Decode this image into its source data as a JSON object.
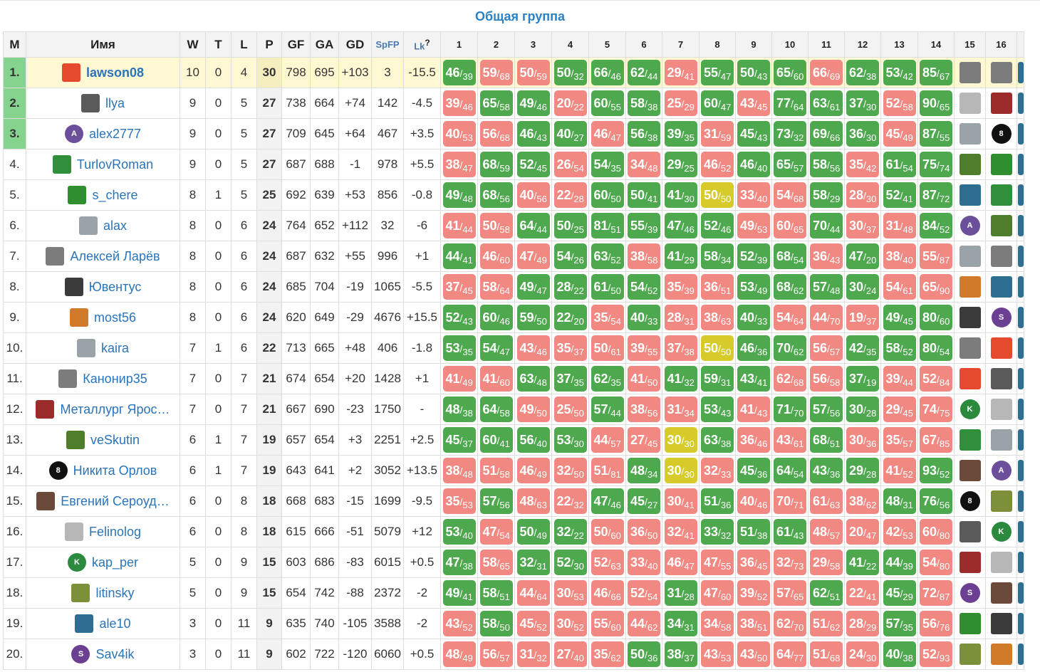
{
  "title": "Общая группа",
  "headers": {
    "rank": "М",
    "name": "Имя",
    "w": "W",
    "t": "T",
    "l": "L",
    "p": "P",
    "gf": "GF",
    "ga": "GA",
    "gd": "GD",
    "spfp": "SpFP",
    "lk": "Lk",
    "lk_help": "?"
  },
  "game_headers": [
    "1",
    "2",
    "3",
    "4",
    "5",
    "6",
    "7",
    "8",
    "9",
    "10",
    "11",
    "12",
    "13",
    "14",
    "15",
    "16"
  ],
  "colors": {
    "win": "#4ea84e",
    "loss": "#f28882",
    "draw": "#d6cb2b",
    "top": "#86d38e",
    "leader_row": "#fff8d2",
    "link": "#2a74b9",
    "title": "#2a82c6"
  },
  "rows": [
    {
      "rank": "1.",
      "name": "lawson08",
      "icon": "pentagon-red",
      "w": "10",
      "t": "0",
      "l": "4",
      "p": "30",
      "gf": "798",
      "ga": "695",
      "gd": "+103",
      "spfp": "3",
      "lk": "-15.5",
      "games": [
        "46/39",
        "59/68",
        "50/59",
        "50/32",
        "66/46",
        "62/44",
        "29/41",
        "55/47",
        "50/43",
        "65/60",
        "66/69",
        "62/38",
        "53/42",
        "85/67"
      ],
      "icons": [
        "photo-gray",
        "photo-gray"
      ]
    },
    {
      "rank": "2.",
      "name": "llya",
      "icon": "photo-lincoln",
      "w": "9",
      "t": "0",
      "l": "5",
      "p": "27",
      "gf": "738",
      "ga": "664",
      "gd": "+74",
      "spfp": "142",
      "lk": "-4.5",
      "games": [
        "39/46",
        "65/58",
        "49/46",
        "20/22",
        "60/55",
        "58/38",
        "25/29",
        "60/47",
        "43/45",
        "77/64",
        "63/61",
        "37/30",
        "52/58",
        "90/65"
      ],
      "corners": {
        "2": "0",
        "4": "0",
        "7": "2",
        "8": "0",
        "10": "1",
        "13": "0"
      },
      "icons": [
        "photo-sketch",
        "photo-soccer"
      ]
    },
    {
      "rank": "3.",
      "name": "alex2777",
      "icon": "letter-A",
      "w": "9",
      "t": "0",
      "l": "5",
      "p": "27",
      "gf": "709",
      "ga": "645",
      "gd": "+64",
      "spfp": "467",
      "lk": "+3.5",
      "games": [
        "40/53",
        "56/68",
        "46/43",
        "40/27",
        "46/47",
        "56/38",
        "39/35",
        "31/59",
        "45/43",
        "73/32",
        "69/66",
        "36/30",
        "45/49",
        "87/55"
      ],
      "icons": [
        "photo-cat",
        "eight-ball"
      ]
    },
    {
      "rank": "4.",
      "name": "TurlovRoman",
      "icon": "flag-it",
      "w": "9",
      "t": "0",
      "l": "5",
      "p": "27",
      "gf": "687",
      "ga": "688",
      "gd": "-1",
      "spfp": "978",
      "lk": "+5.5",
      "games": [
        "38/47",
        "68/59",
        "52/45",
        "26/54",
        "54/35",
        "34/48",
        "29/25",
        "46/52",
        "46/40",
        "65/57",
        "58/56",
        "35/42",
        "61/54",
        "75/74"
      ],
      "corners": {
        "2": "15",
        "3": "15",
        "8": "2",
        "10": "15",
        "12": "15"
      },
      "icons": [
        "photo-green",
        "hat-green"
      ]
    },
    {
      "rank": "5.",
      "name": "s_chere",
      "icon": "hat-green",
      "w": "8",
      "t": "1",
      "l": "5",
      "p": "25",
      "gf": "692",
      "ga": "639",
      "gd": "+53",
      "spfp": "856",
      "lk": "-0.8",
      "games": [
        "49/48",
        "68/56",
        "40/56",
        "22/28",
        "60/50",
        "50/41",
        "41/30",
        "50/50",
        "33/40",
        "54/68",
        "58/29",
        "28/30",
        "52/41",
        "87/72"
      ],
      "icons": [
        "photo-blue",
        "flag-it"
      ]
    },
    {
      "rank": "6.",
      "name": "alax",
      "icon": "photo-cat",
      "w": "8",
      "t": "0",
      "l": "6",
      "p": "24",
      "gf": "764",
      "ga": "652",
      "gd": "+112",
      "spfp": "32",
      "lk": "-6",
      "games": [
        "41/44",
        "50/58",
        "64/44",
        "50/25",
        "81/51",
        "55/39",
        "47/46",
        "52/46",
        "49/53",
        "60/65",
        "70/44",
        "30/37",
        "31/48",
        "84/52"
      ],
      "corners": {
        "3": "0",
        "4": "1"
      },
      "icons": [
        "letter-A",
        "photo-green"
      ]
    },
    {
      "rank": "7.",
      "name": "Алексей Ларёв",
      "icon": "photo-gray",
      "w": "8",
      "t": "0",
      "l": "6",
      "p": "24",
      "gf": "687",
      "ga": "632",
      "gd": "+55",
      "spfp": "996",
      "lk": "+1",
      "games": [
        "44/41",
        "46/60",
        "47/49",
        "54/26",
        "63/52",
        "38/58",
        "41/29",
        "58/34",
        "52/39",
        "68/54",
        "36/43",
        "47/20",
        "38/40",
        "55/87"
      ],
      "icons": [
        "photo-cat",
        "photo-gray"
      ]
    },
    {
      "rank": "8.",
      "name": "Ювентус",
      "icon": "juve",
      "w": "8",
      "t": "0",
      "l": "6",
      "p": "24",
      "gf": "685",
      "ga": "704",
      "gd": "-19",
      "spfp": "1065",
      "lk": "-5.5",
      "games": [
        "37/45",
        "58/64",
        "49/47",
        "28/22",
        "61/50",
        "54/52",
        "35/39",
        "36/51",
        "53/49",
        "68/62",
        "57/48",
        "30/24",
        "54/61",
        "65/90"
      ],
      "icons": [
        "mushroom",
        "photo-blue"
      ]
    },
    {
      "rank": "9.",
      "name": "most56",
      "icon": "mushroom",
      "w": "8",
      "t": "0",
      "l": "6",
      "p": "24",
      "gf": "620",
      "ga": "649",
      "gd": "-29",
      "spfp": "4676",
      "lk": "+15.5",
      "games": [
        "52/43",
        "60/46",
        "59/50",
        "22/20",
        "35/54",
        "40/33",
        "28/31",
        "38/63",
        "40/33",
        "54/64",
        "44/70",
        "19/37",
        "49/45",
        "80/60"
      ],
      "corners": {
        "5": "0",
        "8": "0",
        "12": "0"
      },
      "icons": [
        "juve",
        "letter-S"
      ]
    },
    {
      "rank": "10.",
      "name": "kaira",
      "icon": "photo-cat",
      "w": "7",
      "t": "1",
      "l": "6",
      "p": "22",
      "gf": "713",
      "ga": "665",
      "gd": "+48",
      "spfp": "406",
      "lk": "-1.8",
      "games": [
        "53/35",
        "54/47",
        "43/46",
        "35/37",
        "50/61",
        "39/55",
        "37/38",
        "50/50",
        "46/36",
        "70/62",
        "56/57",
        "42/35",
        "58/52",
        "80/54"
      ],
      "icons": [
        "photo-gray",
        "pentagon-red"
      ]
    },
    {
      "rank": "11.",
      "name": "Канонир35",
      "icon": "photo-gray",
      "w": "7",
      "t": "0",
      "l": "7",
      "p": "21",
      "gf": "674",
      "ga": "654",
      "gd": "+20",
      "spfp": "1428",
      "lk": "+1",
      "games": [
        "41/49",
        "41/60",
        "63/48",
        "37/35",
        "62/35",
        "41/50",
        "41/32",
        "59/31",
        "43/41",
        "62/68",
        "56/58",
        "37/19",
        "39/44",
        "52/84"
      ],
      "icons": [
        "pentagon-red",
        "photo-lincoln"
      ]
    },
    {
      "rank": "12.",
      "name": "Металлург Ярос…",
      "icon": "photo-soccer",
      "w": "7",
      "t": "0",
      "l": "7",
      "p": "21",
      "gf": "667",
      "ga": "690",
      "gd": "-23",
      "spfp": "1750",
      "lk": "-",
      "games": [
        "48/38",
        "64/58",
        "49/50",
        "25/50",
        "57/44",
        "38/56",
        "31/34",
        "53/43",
        "41/43",
        "71/70",
        "57/56",
        "30/28",
        "29/45",
        "74/75"
      ],
      "icons": [
        "letter-K",
        "photo-sketch"
      ]
    },
    {
      "rank": "13.",
      "name": "veSkutin",
      "icon": "photo-green",
      "w": "6",
      "t": "1",
      "l": "7",
      "p": "19",
      "gf": "657",
      "ga": "654",
      "gd": "+3",
      "spfp": "2251",
      "lk": "+2.5",
      "games": [
        "45/37",
        "60/41",
        "56/40",
        "53/30",
        "44/57",
        "27/45",
        "30/30",
        "63/38",
        "36/46",
        "43/61",
        "68/51",
        "30/36",
        "35/57",
        "67/85"
      ],
      "corners": {
        "13": "0"
      },
      "icons": [
        "flag-it",
        "photo-cat"
      ]
    },
    {
      "rank": "14.",
      "name": "Никита Орлов",
      "icon": "eight-ball",
      "w": "6",
      "t": "1",
      "l": "7",
      "p": "19",
      "gf": "643",
      "ga": "641",
      "gd": "+2",
      "spfp": "3052",
      "lk": "+13.5",
      "games": [
        "38/48",
        "51/58",
        "46/49",
        "32/50",
        "51/81",
        "48/34",
        "30/30",
        "32/33",
        "45/36",
        "64/54",
        "43/36",
        "29/28",
        "41/52",
        "93/52"
      ],
      "icons": [
        "photo-portrait",
        "letter-A"
      ]
    },
    {
      "rank": "15.",
      "name": "Евгений Сероуд…",
      "icon": "photo-portrait",
      "w": "6",
      "t": "0",
      "l": "8",
      "p": "18",
      "gf": "668",
      "ga": "683",
      "gd": "-15",
      "spfp": "1699",
      "lk": "-9.5",
      "games": [
        "35/53",
        "57/56",
        "48/63",
        "22/32",
        "47/46",
        "45/27",
        "30/41",
        "51/36",
        "40/46",
        "70/71",
        "61/63",
        "38/62",
        "48/31",
        "76/56"
      ],
      "icons": [
        "eight-ball",
        "frog"
      ]
    },
    {
      "rank": "16.",
      "name": "Felinolog",
      "icon": "photo-sketch",
      "w": "6",
      "t": "0",
      "l": "8",
      "p": "18",
      "gf": "615",
      "ga": "666",
      "gd": "-51",
      "spfp": "5079",
      "lk": "+12",
      "games": [
        "53/40",
        "47/54",
        "50/49",
        "32/22",
        "50/60",
        "36/50",
        "32/41",
        "33/32",
        "51/38",
        "61/43",
        "48/57",
        "20/47",
        "42/53",
        "60/80"
      ],
      "corners": {
        "6": "0"
      },
      "icons": [
        "photo-lincoln",
        "letter-K"
      ]
    },
    {
      "rank": "17.",
      "name": "kap_per",
      "icon": "letter-K",
      "w": "5",
      "t": "0",
      "l": "9",
      "p": "15",
      "gf": "603",
      "ga": "686",
      "gd": "-83",
      "spfp": "6015",
      "lk": "+0.5",
      "games": [
        "47/38",
        "58/65",
        "32/31",
        "52/30",
        "52/63",
        "33/40",
        "46/47",
        "47/55",
        "36/45",
        "32/73",
        "29/58",
        "41/22",
        "44/39",
        "54/80"
      ],
      "corners": {
        "4": "2",
        "11": "0"
      },
      "icons": [
        "photo-soccer",
        "photo-sketch"
      ]
    },
    {
      "rank": "18.",
      "name": "litinsky",
      "icon": "frog",
      "w": "5",
      "t": "0",
      "l": "9",
      "p": "15",
      "gf": "654",
      "ga": "742",
      "gd": "-88",
      "spfp": "2372",
      "lk": "-2",
      "games": [
        "49/41",
        "58/51",
        "44/64",
        "30/53",
        "46/66",
        "52/54",
        "31/28",
        "47/60",
        "39/52",
        "57/65",
        "62/51",
        "22/41",
        "45/29",
        "72/87"
      ],
      "corners": {
        "5": "0",
        "12": "0"
      },
      "icons": [
        "letter-S",
        "photo-portrait"
      ]
    },
    {
      "rank": "19.",
      "name": "ale10",
      "icon": "photo-blue",
      "w": "3",
      "t": "0",
      "l": "11",
      "p": "9",
      "gf": "635",
      "ga": "740",
      "gd": "-105",
      "spfp": "3588",
      "lk": "-2",
      "games": [
        "43/52",
        "58/50",
        "45/52",
        "30/52",
        "55/60",
        "44/62",
        "34/31",
        "34/58",
        "38/51",
        "62/70",
        "51/62",
        "28/29",
        "57/35",
        "56/76"
      ],
      "corners": {
        "7": "0",
        "11": "0"
      },
      "icons": [
        "hat-green",
        "juve"
      ]
    },
    {
      "rank": "20.",
      "name": "Sav4ik",
      "icon": "letter-S",
      "w": "3",
      "t": "0",
      "l": "11",
      "p": "9",
      "gf": "602",
      "ga": "722",
      "gd": "-120",
      "spfp": "6060",
      "lk": "+0.5",
      "games": [
        "48/49",
        "56/57",
        "31/32",
        "27/40",
        "35/62",
        "50/36",
        "38/37",
        "43/53",
        "43/50",
        "64/77",
        "51/68",
        "24/30",
        "40/38",
        "52/93"
      ],
      "icons": [
        "frog",
        "mushroom"
      ]
    }
  ]
}
